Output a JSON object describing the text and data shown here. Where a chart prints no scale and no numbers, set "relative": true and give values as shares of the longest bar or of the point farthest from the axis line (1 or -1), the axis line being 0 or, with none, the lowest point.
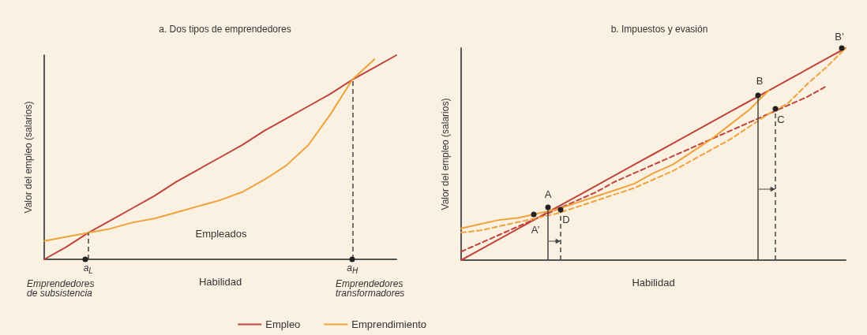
{
  "chart_data": [
    {
      "type": "line",
      "title": "a. Dos tipos de emprendedores",
      "xlabel": "Habilidad",
      "ylabel": "Valor del empleo (salarios)",
      "relative": true,
      "categories": [
        null,
        null,
        "a$_{L}$",
        null,
        null,
        null,
        null,
        null,
        null,
        null,
        null,
        null,
        null,
        null,
        "a$_{H}$",
        null,
        null
      ],
      "series": [
        {
          "name": "Empleo",
          "color": "#c0443a",
          "values": [
            0,
            0.06,
            0.13,
            0.19,
            0.25,
            0.31,
            0.38,
            0.44,
            0.5,
            0.56,
            0.63,
            0.69,
            0.75,
            0.81,
            0.88,
            0.94,
            1
          ]
        },
        {
          "name": "Emprendimiento",
          "color": "#f0a23a",
          "values": [
            0.09,
            0.11,
            0.13,
            0.15,
            0.18,
            0.2,
            0.23,
            0.26,
            0.29,
            0.33,
            0.39,
            0.46,
            0.56,
            0.71,
            0.88,
            0.98,
            null
          ]
        }
      ],
      "ref_lines": [
        {
          "axis": "x",
          "value": "a$_{L}$",
          "line_style": "dashed",
          "color": "#444444"
        },
        {
          "axis": "x",
          "value": "a$_{H}$",
          "line_style": "dashed",
          "color": "#444444"
        }
      ],
      "annotations": [
        "Empleados",
        "Emprendedores de subsistencia",
        "Emprendedores transformadores"
      ],
      "grid": false,
      "legend": "bottom",
      "marker": "none",
      "line_style": "solid",
      "tick_labels": "x"
    },
    {
      "type": "line",
      "title": "b. Impuestos y evasión",
      "xlabel": "Habilidad",
      "ylabel": "Valor del empleo (salarios)",
      "relative": true,
      "categories": [
        null,
        null,
        null,
        null,
        null,
        null,
        null,
        null,
        null,
        null,
        null,
        null,
        null,
        null,
        null,
        null,
        null,
        null,
        null,
        null,
        null
      ],
      "series": [
        {
          "color": "#c0443a",
          "values": [
            0,
            0.05,
            0.1,
            0.15,
            0.2,
            0.25,
            0.3,
            0.35,
            0.4,
            0.45,
            0.5,
            0.55,
            0.6,
            0.65,
            0.7,
            0.75,
            0.8,
            0.85,
            0.9,
            0.95,
            1
          ]
        },
        {
          "color": "#c0443a",
          "line_style": "dashed",
          "values": [
            0.04,
            0.08,
            0.12,
            0.16,
            0.2,
            0.24,
            0.28,
            0.32,
            0.37,
            0.41,
            0.45,
            0.49,
            0.53,
            0.57,
            0.61,
            0.65,
            0.69,
            0.73,
            0.77,
            0.82,
            null
          ]
        },
        {
          "color": "#f0a23a",
          "values": [
            0.15,
            0.17,
            0.19,
            0.2,
            0.22,
            0.24,
            0.27,
            0.3,
            0.33,
            0.36,
            0.41,
            0.45,
            0.51,
            0.57,
            0.64,
            0.71,
            0.8,
            null,
            null,
            null,
            null
          ]
        },
        {
          "color": "#f0a23a",
          "line_style": "dashed",
          "values": [
            0.13,
            0.14,
            0.16,
            0.18,
            0.2,
            0.22,
            0.25,
            0.28,
            0.31,
            0.34,
            0.38,
            0.42,
            0.47,
            0.52,
            0.57,
            0.63,
            0.69,
            0.74,
            0.83,
            0.91,
            1
          ]
        }
      ],
      "annotations": [
        "A",
        "A’",
        "B",
        "B’",
        "C",
        "D"
      ],
      "grid": false,
      "marker": "none",
      "line_style": "solid",
      "tick_labels": false
    }
  ]
}
